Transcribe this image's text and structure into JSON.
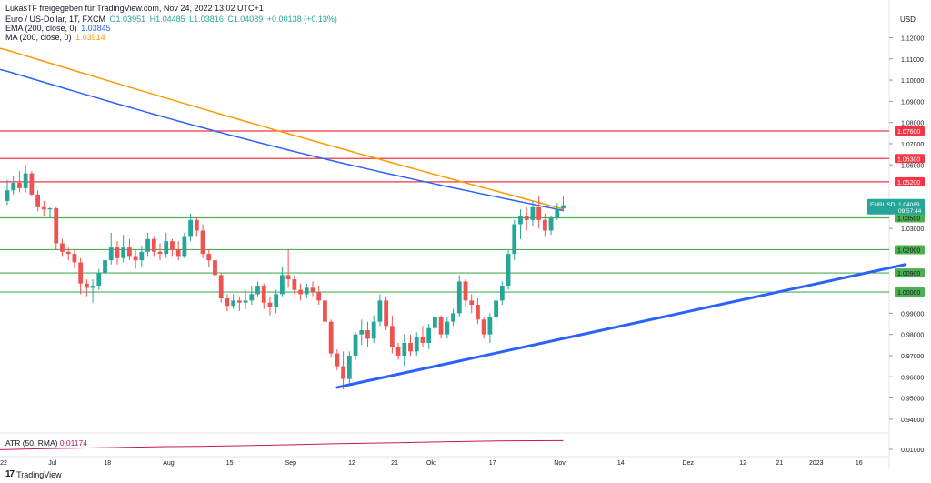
{
  "header": {
    "credit": "LukasTF freigegeben für TradingView.com, Nov 24, 2022 13:02 UTC+1",
    "symbol_line": "Euro / US-Dollar, 1T, FXCM",
    "ohlc": {
      "o": "O1.03951",
      "h": "H1.04485",
      "l": "L1.03816",
      "c": "C1.04089",
      "chg": "+0.00138 (+0.13%)"
    },
    "ema_label": "EMA (200, close, 0)",
    "ema_value": "1.03845",
    "ma_label": "MA (200, close, 0)",
    "ma_value": "1.03914",
    "atr_label": "ATR (50, RMA)",
    "atr_value": "0.01174",
    "currency": "USD",
    "logo": "TradingView",
    "logo_mark": "17"
  },
  "colors": {
    "up": "#26a69a",
    "down": "#ef5350",
    "ema": "#2962ff",
    "ma": "#ff9800",
    "resistance": "#f23645",
    "support": "#4caf50",
    "trend": "#2962ff",
    "atr": "#c2185b"
  },
  "chart_data": {
    "type": "candlestick",
    "symbol": "EURUSD",
    "y_ticks": [
      0.94,
      0.95,
      0.96,
      0.97,
      0.98,
      0.99,
      1.03,
      1.06,
      1.07,
      1.08,
      1.09,
      1.1,
      1.11,
      1.12
    ],
    "y_tick_labels": [
      "0.94000",
      "0.95000",
      "0.96000",
      "0.97000",
      "0.98000",
      "0.99000",
      "1.03000",
      "1.06000",
      "1.07000",
      "1.08000",
      "1.09000",
      "1.10000",
      "1.11000",
      "1.12000"
    ],
    "ylim": [
      0.9335,
      1.1335
    ],
    "x_labels": [
      "22",
      "Jul",
      "18",
      "Aug",
      "15",
      "Sep",
      "12",
      "21",
      "Okt",
      "17",
      "Nov",
      "14",
      "Dez",
      "12",
      "21",
      "2023",
      "16"
    ],
    "x_label_index": [
      0,
      8,
      17,
      27,
      37,
      47,
      57,
      64,
      70,
      80,
      91,
      101,
      112,
      121,
      127,
      133,
      140
    ],
    "candles": [
      [
        1.043,
        1.053,
        1.041,
        1.048
      ],
      [
        1.048,
        1.055,
        1.046,
        1.0515
      ],
      [
        1.0515,
        1.057,
        1.047,
        1.049
      ],
      [
        1.049,
        1.06,
        1.047,
        1.056
      ],
      [
        1.056,
        1.057,
        1.045,
        1.046
      ],
      [
        1.046,
        1.048,
        1.038,
        1.04
      ],
      [
        1.04,
        1.043,
        1.036,
        1.039
      ],
      [
        1.039,
        1.04,
        1.035,
        1.0395
      ],
      [
        1.0395,
        1.04,
        1.02,
        1.023
      ],
      [
        1.023,
        1.025,
        1.017,
        1.019
      ],
      [
        1.019,
        1.021,
        1.015,
        1.018
      ],
      [
        1.018,
        1.02,
        1.011,
        1.014
      ],
      [
        1.014,
        1.016,
        0.999,
        1.004
      ],
      [
        1.004,
        1.006,
        0.998,
        1.002
      ],
      [
        1.002,
        1.006,
        0.995,
        1.003
      ],
      [
        1.003,
        1.011,
        1.001,
        1.009
      ],
      [
        1.009,
        1.02,
        1.007,
        1.015
      ],
      [
        1.015,
        1.028,
        1.013,
        1.021
      ],
      [
        1.021,
        1.024,
        1.013,
        1.016
      ],
      [
        1.016,
        1.027,
        1.014,
        1.021
      ],
      [
        1.021,
        1.025,
        1.015,
        1.017
      ],
      [
        1.017,
        1.02,
        1.011,
        1.015
      ],
      [
        1.015,
        1.022,
        1.012,
        1.019
      ],
      [
        1.019,
        1.028,
        1.017,
        1.025
      ],
      [
        1.025,
        1.026,
        1.017,
        1.019
      ],
      [
        1.019,
        1.023,
        1.015,
        1.018
      ],
      [
        1.018,
        1.028,
        1.016,
        1.024
      ],
      [
        1.024,
        1.025,
        1.017,
        1.02
      ],
      [
        1.02,
        1.024,
        1.015,
        1.017
      ],
      [
        1.017,
        1.028,
        1.016,
        1.026
      ],
      [
        1.026,
        1.037,
        1.024,
        1.034
      ],
      [
        1.034,
        1.035,
        1.026,
        1.029
      ],
      [
        1.029,
        1.032,
        1.016,
        1.018
      ],
      [
        1.018,
        1.02,
        1.012,
        1.015
      ],
      [
        1.015,
        1.016,
        1.005,
        1.008
      ],
      [
        1.008,
        1.009,
        0.995,
        0.997
      ],
      [
        0.997,
        0.999,
        0.991,
        0.9935
      ],
      [
        0.9935,
        0.999,
        0.992,
        0.996
      ],
      [
        0.996,
        0.998,
        0.991,
        0.995
      ],
      [
        0.995,
        1.001,
        0.992,
        0.996
      ],
      [
        0.996,
        1.003,
        0.994,
        0.999
      ],
      [
        0.999,
        1.005,
        0.998,
        1.003
      ],
      [
        1.003,
        1.004,
        0.992,
        0.995
      ],
      [
        0.995,
        0.998,
        0.989,
        0.993
      ],
      [
        0.993,
        1.001,
        0.99,
        0.999
      ],
      [
        0.999,
        1.012,
        0.998,
        1.008
      ],
      [
        1.008,
        1.02,
        1.002,
        1.006
      ],
      [
        1.006,
        1.008,
        0.999,
        1.001
      ],
      [
        1.001,
        1.004,
        0.996,
        0.999
      ],
      [
        0.999,
        1.004,
        0.997,
        1.002
      ],
      [
        1.002,
        1.005,
        0.998,
        1.0
      ],
      [
        1.0,
        1.003,
        0.994,
        0.996
      ],
      [
        0.996,
        0.997,
        0.984,
        0.986
      ],
      [
        0.986,
        0.987,
        0.969,
        0.971
      ],
      [
        0.971,
        0.973,
        0.963,
        0.965
      ],
      [
        0.965,
        0.972,
        0.954,
        0.959
      ],
      [
        0.959,
        0.972,
        0.957,
        0.97
      ],
      [
        0.97,
        0.981,
        0.968,
        0.98
      ],
      [
        0.98,
        0.987,
        0.975,
        0.982
      ],
      [
        0.982,
        0.986,
        0.974,
        0.978
      ],
      [
        0.978,
        0.989,
        0.976,
        0.986
      ],
      [
        0.986,
        0.999,
        0.984,
        0.996
      ],
      [
        0.996,
        0.998,
        0.982,
        0.984
      ],
      [
        0.984,
        0.989,
        0.971,
        0.974
      ],
      [
        0.974,
        0.976,
        0.968,
        0.97
      ],
      [
        0.97,
        0.98,
        0.965,
        0.976
      ],
      [
        0.976,
        0.98,
        0.97,
        0.972
      ],
      [
        0.972,
        0.981,
        0.97,
        0.979
      ],
      [
        0.979,
        0.984,
        0.974,
        0.976
      ],
      [
        0.976,
        0.985,
        0.973,
        0.983
      ],
      [
        0.983,
        0.99,
        0.979,
        0.988
      ],
      [
        0.988,
        0.989,
        0.978,
        0.98
      ],
      [
        0.98,
        0.988,
        0.978,
        0.986
      ],
      [
        0.986,
        0.992,
        0.984,
        0.99
      ],
      [
        0.99,
        1.008,
        0.988,
        1.005
      ],
      [
        1.005,
        1.006,
        0.993,
        0.996
      ],
      [
        0.996,
        0.999,
        0.99,
        0.994
      ],
      [
        0.994,
        0.997,
        0.985,
        0.987
      ],
      [
        0.987,
        0.988,
        0.978,
        0.98
      ],
      [
        0.98,
        0.99,
        0.976,
        0.988
      ],
      [
        0.988,
        0.999,
        0.986,
        0.996
      ],
      [
        0.996,
        1.005,
        0.994,
        1.003
      ],
      [
        1.003,
        1.02,
        1.001,
        1.018
      ],
      [
        1.018,
        1.034,
        1.015,
        1.032
      ],
      [
        1.032,
        1.039,
        1.025,
        1.036
      ],
      [
        1.036,
        1.04,
        1.029,
        1.034
      ],
      [
        1.034,
        1.043,
        1.031,
        1.04
      ],
      [
        1.04,
        1.045,
        1.03,
        1.034
      ],
      [
        1.034,
        1.037,
        1.026,
        1.029
      ],
      [
        1.029,
        1.036,
        1.027,
        1.035
      ],
      [
        1.035,
        1.042,
        1.034,
        1.039
      ],
      [
        1.0395,
        1.045,
        1.038,
        1.0409
      ]
    ],
    "ema_200": {
      "start": 1.105,
      "end": 1.03845,
      "label": "EMA (200, close, 0)"
    },
    "ma_200": {
      "start": 1.115,
      "end": 1.03914,
      "label": "MA (200, close, 0)"
    },
    "horizontal_levels": [
      {
        "value": 1.076,
        "label": "1.07600",
        "kind": "resistance"
      },
      {
        "value": 1.063,
        "label": "1.06300",
        "kind": "resistance"
      },
      {
        "value": 1.052,
        "label": "1.05200",
        "kind": "resistance"
      },
      {
        "value": 1.035,
        "label": "1.03500",
        "kind": "support"
      },
      {
        "value": 1.02,
        "label": "1.02000",
        "kind": "support"
      },
      {
        "value": 1.009,
        "label": "1.00900",
        "kind": "support"
      },
      {
        "value": 1.0,
        "label": "1.00000",
        "kind": "support"
      }
    ],
    "trendline": {
      "from": {
        "index": 54,
        "value": 0.955
      },
      "to": {
        "index": 147,
        "value": 1.013
      }
    },
    "last_price": {
      "symbol": "EURUSD",
      "price": "1.04089",
      "countdown": "09:57:44",
      "value": 1.04089
    },
    "atr_values": [
      0.0085,
      0.0088,
      0.009,
      0.0092,
      0.0094,
      0.0096,
      0.0097,
      0.0099,
      0.0101,
      0.0103,
      0.0106,
      0.0108,
      0.011,
      0.0112,
      0.0114,
      0.0116,
      0.0117,
      0.01174
    ],
    "atr_ticks": {
      "label": "0.01000"
    }
  }
}
